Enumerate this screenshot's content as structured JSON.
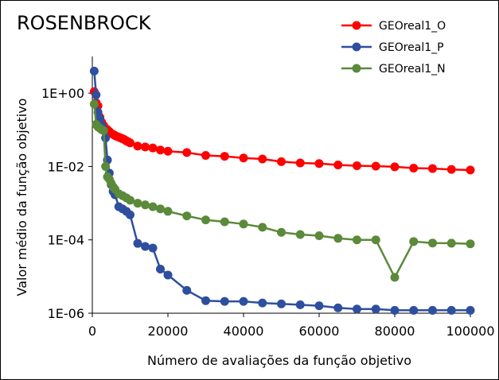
{
  "chart_data": {
    "type": "line",
    "title": "ROSENBROCK",
    "xlabel": "Número de avaliações da função objetivo",
    "ylabel": "Valor médio da função objetivo",
    "xlim": [
      0,
      100000
    ],
    "ylim": [
      1e-06,
      10
    ],
    "yscale": "log",
    "xticks": [
      0,
      20000,
      40000,
      60000,
      80000,
      100000
    ],
    "xtick_labels": [
      "0",
      "20000",
      "40000",
      "60000",
      "80000",
      "100000"
    ],
    "yticks": [
      1e-06,
      0.0001,
      0.01,
      1
    ],
    "ytick_labels": [
      "1E-06",
      "1E-04",
      "1E-02",
      "1E+00"
    ],
    "grid": false,
    "legend_position": "top-right",
    "series": [
      {
        "name": "GEOreal1_O",
        "color": "#ff0000",
        "x": [
          500,
          1000,
          1500,
          2000,
          2500,
          3000,
          3500,
          4000,
          4500,
          5000,
          5500,
          6000,
          6500,
          7000,
          7500,
          8000,
          8500,
          9000,
          9500,
          10000,
          12000,
          14000,
          16000,
          18000,
          20000,
          25000,
          30000,
          35000,
          40000,
          45000,
          50000,
          55000,
          60000,
          65000,
          70000,
          75000,
          80000,
          85000,
          90000,
          95000,
          100000
        ],
        "y": [
          1.1,
          0.55,
          0.45,
          0.22,
          0.16,
          0.13,
          0.11,
          0.1,
          0.09,
          0.08,
          0.075,
          0.07,
          0.066,
          0.063,
          0.06,
          0.057,
          0.054,
          0.05,
          0.047,
          0.044,
          0.036,
          0.034,
          0.032,
          0.028,
          0.026,
          0.024,
          0.02,
          0.019,
          0.017,
          0.016,
          0.0135,
          0.0125,
          0.012,
          0.011,
          0.0105,
          0.0102,
          0.0098,
          0.009,
          0.0088,
          0.0083,
          0.008
        ]
      },
      {
        "name": "GEOreal1_P",
        "color": "#2e4f9e",
        "x": [
          500,
          1000,
          1500,
          2000,
          2500,
          3000,
          3500,
          4000,
          4500,
          5000,
          5500,
          6000,
          7000,
          8000,
          9000,
          10000,
          12000,
          14000,
          16000,
          18000,
          20000,
          25000,
          30000,
          35000,
          40000,
          45000,
          50000,
          55000,
          60000,
          65000,
          70000,
          75000,
          80000,
          85000,
          90000,
          95000,
          100000
        ],
        "y": [
          4,
          0.9,
          0.3,
          0.2,
          0.13,
          0.1,
          0.06,
          0.015,
          0.0066,
          0.0032,
          0.0021,
          0.0017,
          0.0008,
          0.0007,
          0.0006,
          0.00048,
          8e-05,
          6.6e-05,
          6e-05,
          1.6e-05,
          1.1e-05,
          4.2e-06,
          2.2e-06,
          2.1e-06,
          2.1e-06,
          1.9e-06,
          1.8e-06,
          1.7e-06,
          1.6e-06,
          1.4e-06,
          1.3e-06,
          1.3e-06,
          1.2e-06,
          1.2e-06,
          1.2e-06,
          1.2e-06,
          1.2e-06
        ]
      },
      {
        "name": "GEOreal1_N",
        "color": "#5a8a3a",
        "x": [
          500,
          1000,
          1500,
          2000,
          2500,
          3000,
          3500,
          4000,
          4500,
          5000,
          5500,
          6000,
          7000,
          8000,
          9000,
          10000,
          12000,
          14000,
          16000,
          18000,
          20000,
          25000,
          30000,
          35000,
          40000,
          45000,
          50000,
          55000,
          60000,
          65000,
          70000,
          75000,
          80000,
          85000,
          90000,
          95000,
          100000
        ],
        "y": [
          0.5,
          0.14,
          0.12,
          0.11,
          0.1,
          0.095,
          0.01,
          0.0052,
          0.0045,
          0.0035,
          0.0028,
          0.0024,
          0.0018,
          0.0016,
          0.0014,
          0.0012,
          0.001,
          0.0009,
          0.0008,
          0.0007,
          0.0006,
          0.00045,
          0.00035,
          0.00031,
          0.00027,
          0.00022,
          0.00016,
          0.00014,
          0.00013,
          0.00011,
          0.0001,
          0.0001,
          9.5e-06,
          9e-05,
          8.2e-05,
          8.1e-05,
          7.8e-05
        ]
      }
    ]
  }
}
